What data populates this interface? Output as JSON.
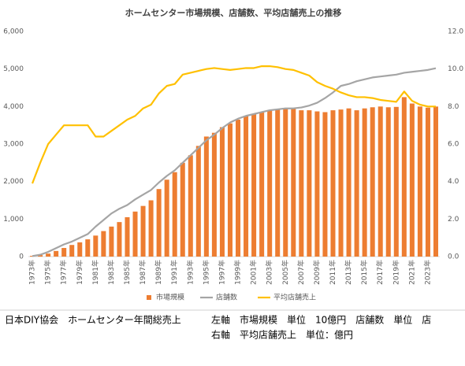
{
  "chart_data": {
    "type": "bar",
    "title": "ホームセンター市場規模、店舗数、平均店舗売上の推移",
    "categories": [
      "1973年",
      null,
      "1975年",
      null,
      "1977年",
      null,
      "1979年",
      null,
      "1981年",
      null,
      "1983年",
      null,
      "1985年",
      null,
      "1987年",
      null,
      "1989年",
      null,
      "1991年",
      null,
      "1993年",
      null,
      "1995年",
      null,
      "1997年",
      null,
      "1999年",
      null,
      "2001年",
      null,
      "2003年",
      null,
      "2005年",
      null,
      "2007年",
      null,
      "2009年",
      null,
      "2011年",
      null,
      "2013年",
      null,
      "2015年",
      null,
      "2017年",
      null,
      "2019年",
      null,
      "2021年",
      null,
      "2023年",
      null
    ],
    "series": [
      {
        "name": "市場規模",
        "type": "bar",
        "color": "#ed7d31",
        "values": [
          20,
          40,
          80,
          150,
          230,
          310,
          380,
          460,
          560,
          680,
          800,
          920,
          1050,
          1200,
          1350,
          1500,
          1800,
          2050,
          2250,
          2500,
          2700,
          2950,
          3200,
          3300,
          3450,
          3550,
          3650,
          3750,
          3800,
          3850,
          3900,
          3930,
          3950,
          3950,
          3900,
          3900,
          3870,
          3850,
          3900,
          3920,
          3950,
          3900,
          3950,
          3980,
          4000,
          3980,
          3990,
          4250,
          4080,
          4000,
          3970,
          4000
        ]
      },
      {
        "name": "店舗数",
        "type": "line",
        "color": "#a5a5a5",
        "values": [
          15,
          50,
          125,
          225,
          325,
          400,
          500,
          600,
          800,
          975,
          1150,
          1275,
          1375,
          1525,
          1650,
          1775,
          1975,
          2150,
          2300,
          2500,
          2700,
          2900,
          3100,
          3250,
          3425,
          3575,
          3675,
          3750,
          3800,
          3850,
          3900,
          3925,
          3950,
          3950,
          3975,
          4025,
          4100,
          4225,
          4375,
          4550,
          4600,
          4675,
          4725,
          4775,
          4800,
          4825,
          4850,
          4900,
          4925,
          4950,
          4975,
          5020
        ]
      },
      {
        "name": "平均店舗売上",
        "type": "line",
        "axis": "y2",
        "color": "#ffc000",
        "values": [
          3.9,
          5.0,
          6.0,
          6.5,
          7.0,
          7.0,
          7.0,
          7.0,
          6.4,
          6.4,
          6.7,
          7.0,
          7.3,
          7.5,
          7.9,
          8.1,
          8.7,
          9.1,
          9.2,
          9.7,
          9.8,
          9.9,
          10.0,
          10.05,
          10.0,
          9.95,
          10.0,
          10.05,
          10.05,
          10.15,
          10.15,
          10.1,
          10.0,
          9.95,
          9.8,
          9.65,
          9.3,
          9.1,
          8.95,
          8.75,
          8.6,
          8.5,
          8.5,
          8.45,
          8.35,
          8.3,
          8.25,
          8.8,
          8.3,
          8.1,
          8.0,
          8.0
        ]
      }
    ],
    "ylim": [
      0,
      6000
    ],
    "yticks": [
      0,
      {
        "value": 1000,
        "label": "1,000"
      },
      {
        "value": 2000,
        "label": "2,000"
      },
      {
        "value": 3000,
        "label": "3,000"
      },
      {
        "value": 4000,
        "label": "4,000"
      },
      {
        "value": 5000,
        "label": "5,000"
      },
      {
        "value": 6000,
        "label": "6,000"
      }
    ],
    "y2lim": [
      0,
      12
    ],
    "y2ticks": [
      {
        "value": 0,
        "label": "0.0"
      },
      {
        "value": 2,
        "label": "2.0"
      },
      {
        "value": 4,
        "label": "4.0"
      },
      {
        "value": 6,
        "label": "6.0"
      },
      {
        "value": 8,
        "label": "8.0"
      },
      {
        "value": 10,
        "label": "10.0"
      },
      {
        "value": 12,
        "label": "12.0"
      }
    ],
    "grid": false,
    "legend": "bottom",
    "notes": [
      "日本DIY協会　ホームセンター年間総売上",
      "左軸　市場規模　単位　10億円　店舗数　単位　店",
      "右軸　平均店舗売上　単位：億円"
    ]
  }
}
